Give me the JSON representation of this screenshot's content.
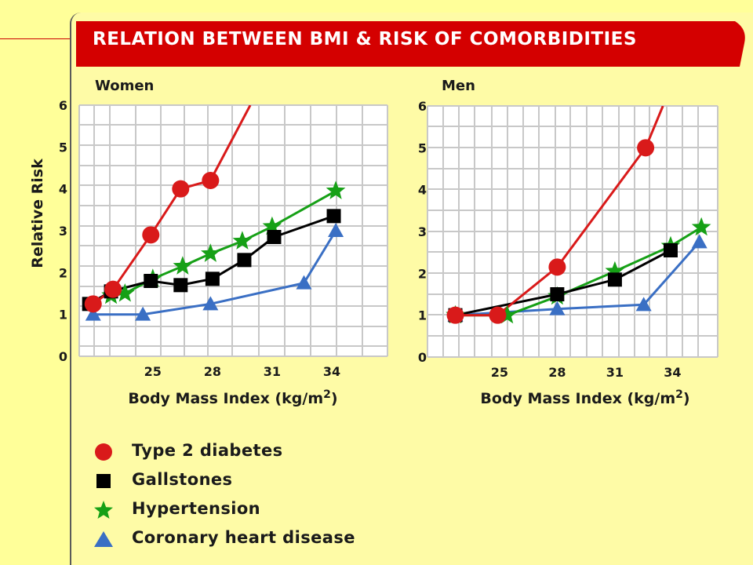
{
  "title": "RELATION BETWEEN BMI & RISK OF COMORBIDITIES",
  "colors": {
    "background": "#ffff99",
    "banner": "#d40000",
    "grid": "#c8c8c8",
    "diabetes": "#d91a1a",
    "gallstones": "#000000",
    "hypertension": "#16a016",
    "chd": "#3a6fc4"
  },
  "legend": [
    {
      "key": "diabetes",
      "label": "Type 2 diabetes",
      "icon": "circle"
    },
    {
      "key": "gallstones",
      "label": "Gallstones",
      "icon": "square"
    },
    {
      "key": "hypertension",
      "label": "Hypertension",
      "icon": "star"
    },
    {
      "key": "chd",
      "label": "Coronary heart disease",
      "icon": "triangle"
    }
  ],
  "chart_data": [
    {
      "type": "line",
      "title": "Women",
      "xlabel": "Body Mass Index (kg/m2)",
      "ylabel": "Relative Risk",
      "x_ticks": [
        25,
        28,
        31,
        34
      ],
      "y_ticks": [
        0,
        1,
        2,
        3,
        4,
        5,
        6
      ],
      "xlim": [
        21.3,
        36.8
      ],
      "ylim": [
        0,
        6
      ],
      "grid": true,
      "series": [
        {
          "name": "Type 2 diabetes",
          "key": "diabetes",
          "marker": "circle",
          "points": [
            [
              22,
              1.25
            ],
            [
              23,
              1.6
            ],
            [
              24.9,
              2.9
            ],
            [
              26.4,
              4.0
            ],
            [
              27.9,
              4.2
            ]
          ],
          "line_end": [
            29.9,
            6.0
          ]
        },
        {
          "name": "Gallstones",
          "key": "gallstones",
          "marker": "square",
          "points": [
            [
              21.8,
              1.25
            ],
            [
              22.9,
              1.55
            ],
            [
              24.9,
              1.8
            ],
            [
              26.4,
              1.7
            ],
            [
              28,
              1.85
            ],
            [
              29.6,
              2.3
            ],
            [
              31.1,
              2.85
            ],
            [
              34.1,
              3.35
            ]
          ]
        },
        {
          "name": "Hypertension",
          "key": "hypertension",
          "marker": "star",
          "points": [
            [
              22.9,
              1.45
            ],
            [
              23.6,
              1.5
            ],
            [
              25,
              1.85
            ],
            [
              26.5,
              2.15
            ],
            [
              27.9,
              2.45
            ],
            [
              29.5,
              2.75
            ],
            [
              31,
              3.1
            ],
            [
              34.2,
              3.95
            ]
          ]
        },
        {
          "name": "Coronary heart disease",
          "key": "chd",
          "marker": "triangle",
          "points": [
            [
              22,
              1.0
            ],
            [
              24.5,
              1.0
            ],
            [
              27.9,
              1.25
            ],
            [
              32.6,
              1.75
            ],
            [
              34.2,
              3.0
            ]
          ]
        }
      ]
    },
    {
      "type": "line",
      "title": "Men",
      "xlabel": "Body Mass Index (kg/m2)",
      "ylabel": "",
      "x_ticks": [
        25,
        28,
        31,
        34
      ],
      "y_ticks": [
        0,
        1,
        2,
        3,
        4,
        5,
        6
      ],
      "xlim": [
        21.25,
        36.35
      ],
      "ylim": [
        0,
        6
      ],
      "grid": true,
      "series": [
        {
          "name": "Type 2 diabetes",
          "key": "diabetes",
          "marker": "circle",
          "points": [
            [
              22.7,
              1.0
            ],
            [
              24.9,
              1.0
            ],
            [
              28,
              2.15
            ],
            [
              32.6,
              5.0
            ]
          ],
          "line_end": [
            33.5,
            6.0
          ]
        },
        {
          "name": "Gallstones",
          "key": "gallstones",
          "marker": "square",
          "points": [
            [
              22.7,
              1.0
            ],
            [
              28,
              1.5
            ],
            [
              31,
              1.85
            ],
            [
              33.9,
              2.55
            ]
          ]
        },
        {
          "name": "Hypertension",
          "key": "hypertension",
          "marker": "star",
          "points": [
            [
              22.7,
              1.0
            ],
            [
              25.4,
              1.0
            ],
            [
              28,
              1.45
            ],
            [
              31,
              2.05
            ],
            [
              33.9,
              2.65
            ],
            [
              35.5,
              3.1
            ]
          ]
        },
        {
          "name": "Coronary heart disease",
          "key": "chd",
          "marker": "triangle",
          "points": [
            [
              22.7,
              1.0
            ],
            [
              28,
              1.15
            ],
            [
              32.5,
              1.25
            ],
            [
              35.4,
              2.75
            ]
          ]
        }
      ]
    }
  ]
}
